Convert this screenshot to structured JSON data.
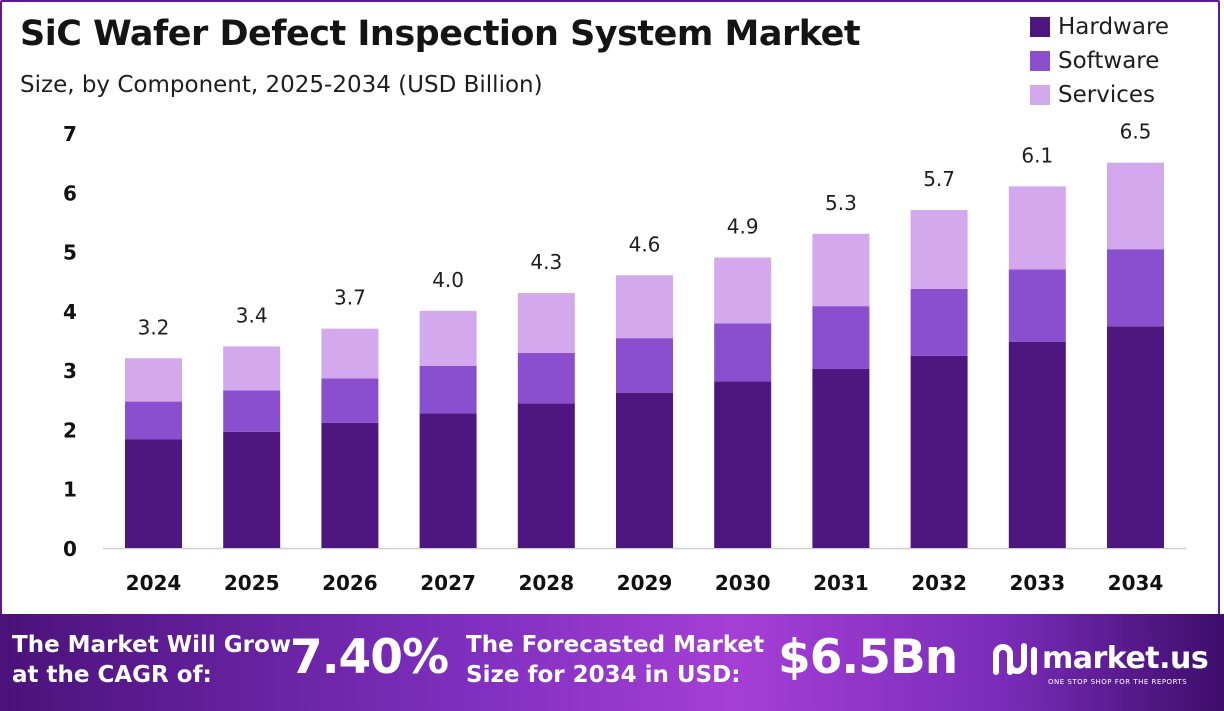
{
  "header": {
    "title": "SiC Wafer Defect Inspection System Market",
    "subtitle": "Size, by Component, 2025-2034 (USD Billion)"
  },
  "colors": {
    "hardware": "#4e1780",
    "software": "#8a4fcf",
    "services": "#d3a8ec",
    "border": "#5b1a8f"
  },
  "chart_data": {
    "type": "bar",
    "stacked": true,
    "categories": [
      "2024",
      "2025",
      "2026",
      "2027",
      "2028",
      "2029",
      "2030",
      "2031",
      "2032",
      "2033",
      "2034"
    ],
    "series": [
      {
        "name": "Hardware",
        "values": [
          1.83,
          1.96,
          2.11,
          2.27,
          2.44,
          2.62,
          2.81,
          3.02,
          3.24,
          3.48,
          3.74
        ]
      },
      {
        "name": "Software",
        "values": [
          0.64,
          0.7,
          0.75,
          0.8,
          0.85,
          0.92,
          0.98,
          1.06,
          1.13,
          1.22,
          1.3
        ]
      },
      {
        "name": "Services",
        "values": [
          0.73,
          0.74,
          0.84,
          0.93,
          1.01,
          1.06,
          1.11,
          1.22,
          1.33,
          1.4,
          1.46
        ]
      }
    ],
    "totals": [
      "3.2",
      "3.4",
      "3.7",
      "4.0",
      "4.3",
      "4.6",
      "4.9",
      "5.3",
      "5.7",
      "6.1",
      "6.5"
    ],
    "ylim": [
      0,
      7
    ],
    "yticks": [
      "0",
      "1",
      "2",
      "3",
      "4",
      "5",
      "6",
      "7"
    ],
    "grid": false,
    "legend": "top-right"
  },
  "footer": {
    "cagr_label_1": "The Market Will Grow",
    "cagr_label_2": "at the CAGR of:",
    "cagr_value": "7.40%",
    "forecast_label_1": "The Forecasted Market",
    "forecast_label_2": "Size for 2034 in USD:",
    "forecast_value": "$6.5Bn",
    "brand_name": "market.us",
    "brand_tagline": "ONE STOP SHOP FOR THE REPORTS"
  }
}
